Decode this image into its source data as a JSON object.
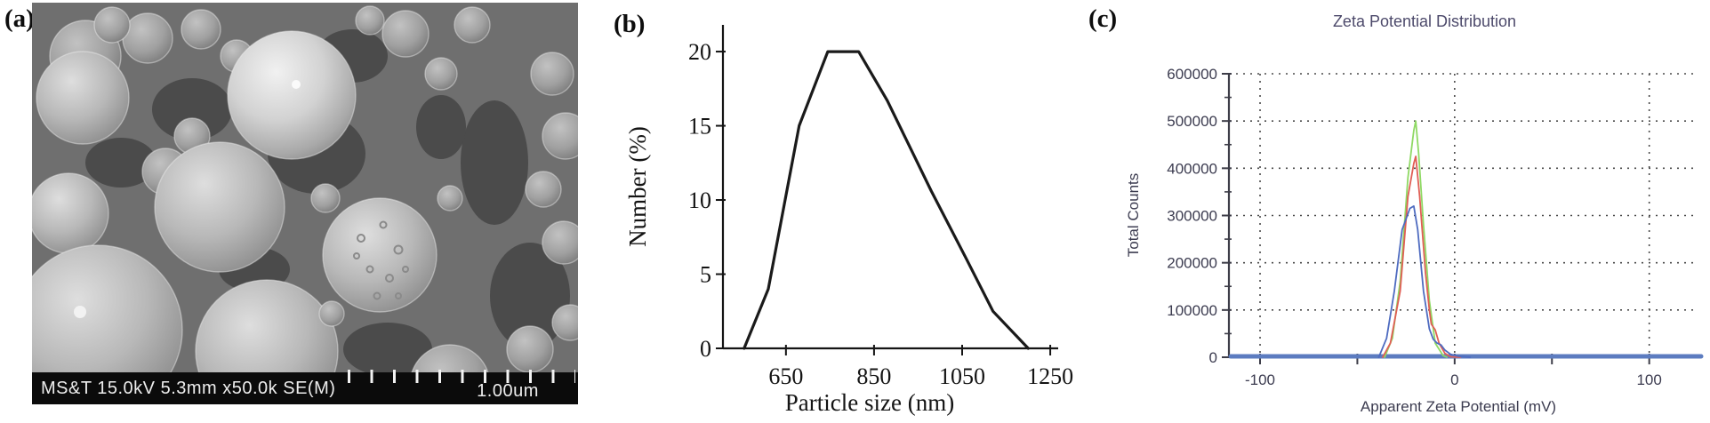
{
  "panels": {
    "a": {
      "label": "(a)",
      "kind": "SEM micrograph",
      "footer_metadata": "MS&T 15.0kV 5.3mm x50.0k SE(M)",
      "scale_label": "1.00um"
    },
    "b": {
      "label": "(b)"
    },
    "c": {
      "label": "(c)"
    }
  },
  "colors": {
    "panel_c_title": "#4D4A6B",
    "panel_c_axis_text": "#3C3C50",
    "panel_c_axis_line": "#3D3D48",
    "panel_c_grid": "#4A4A4A",
    "panel_c_zero_baseline": "#5C7CC0",
    "panel_b_ink": "#141414",
    "sem_footer_bg": "#0B0B0B",
    "sem_footer_text": "#EDEDED"
  },
  "chart_data": [
    {
      "id": "particle-size",
      "type": "line",
      "title": "",
      "xlabel": "Particle size (nm)",
      "ylabel": "Number (%)",
      "x_ticks": [
        650,
        850,
        1050,
        1250
      ],
      "y_ticks": [
        0,
        5,
        10,
        15,
        20
      ],
      "xlim": [
        507,
        1268
      ],
      "ylim": [
        0,
        21.8
      ],
      "grid": false,
      "legend": false,
      "series": [
        {
          "name": "number-distribution",
          "color": "#1A1A1A",
          "x": [
            555,
            610,
            680,
            745,
            815,
            880,
            980,
            1060,
            1120,
            1200
          ],
          "y": [
            0,
            4,
            15,
            20,
            20,
            16.7,
            10.6,
            6,
            2.5,
            0
          ]
        }
      ]
    },
    {
      "id": "zeta-potential",
      "type": "line",
      "title": "Zeta Potential Distribution",
      "xlabel": "Apparent Zeta Potential (mV)",
      "ylabel": "Total Counts",
      "x_ticks": [
        -100,
        -50,
        0,
        50,
        100
      ],
      "x_tick_labels": {
        "-100": "-100",
        "0": "0",
        "100": "100"
      },
      "y_ticks": [
        0,
        100000,
        200000,
        300000,
        400000,
        500000,
        600000
      ],
      "y_minor_step": 50000,
      "xlim": [
        -116,
        123
      ],
      "ylim": [
        0,
        600000
      ],
      "grid": {
        "style": "dotted",
        "h_at": [
          100000,
          200000,
          300000,
          400000,
          500000,
          600000
        ],
        "v_at": [
          -100,
          0,
          100
        ]
      },
      "zero_baseline": {
        "value": 0,
        "color": "#5C7CC0"
      },
      "legend": false,
      "series": [
        {
          "name": "record-green",
          "color": "#8FD964",
          "x": [
            -36,
            -32,
            -28,
            -24,
            -21,
            -20,
            -18.5,
            -16,
            -13,
            -10,
            -6,
            -4
          ],
          "y": [
            0,
            40000,
            160000,
            380000,
            480000,
            500000,
            430000,
            280000,
            120000,
            30000,
            4000,
            0
          ]
        },
        {
          "name": "record-red",
          "color": "#E05E55",
          "x": [
            -37,
            -33,
            -28,
            -24,
            -21,
            -20,
            -18,
            -15,
            -13,
            -12,
            -10,
            -8,
            -5,
            -2,
            3
          ],
          "y": [
            0,
            30000,
            140000,
            340000,
            410000,
            425000,
            340000,
            180000,
            100000,
            70000,
            58000,
            30000,
            8000,
            1000,
            0
          ]
        },
        {
          "name": "record-blue",
          "color": "#4E6BC0",
          "x": [
            -39,
            -35,
            -31,
            -27,
            -23,
            -21,
            -19,
            -16,
            -13,
            -11,
            -9,
            -7,
            -5,
            -2,
            2,
            8
          ],
          "y": [
            0,
            40000,
            140000,
            270000,
            315000,
            320000,
            270000,
            140000,
            60000,
            38000,
            30000,
            26000,
            15000,
            6000,
            2000,
            0
          ]
        }
      ]
    }
  ]
}
